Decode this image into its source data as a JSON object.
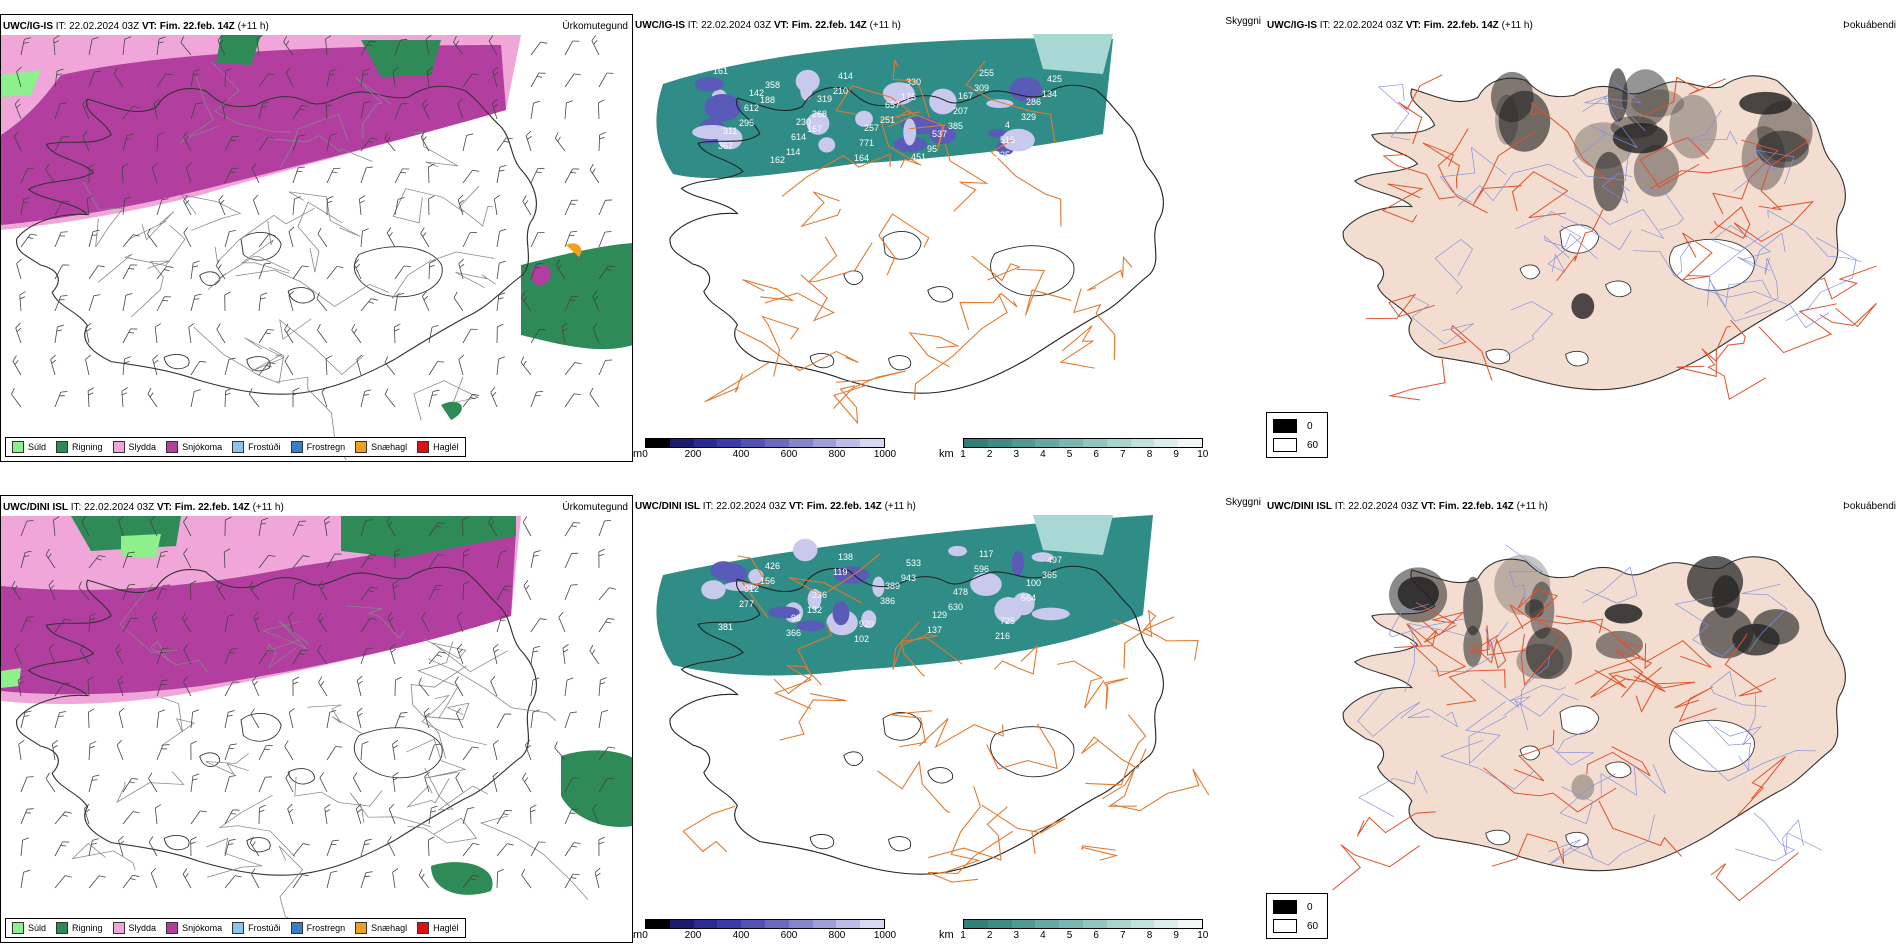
{
  "rows": [
    {
      "model": "UWC/IG-IS",
      "it_label": "IT:",
      "it_value": "22.02.2024 03Z",
      "vt_label": "VT:",
      "vt_value": "Fim. 22.feb. 14Z",
      "lead": "(+11 h)",
      "ptype_label": "Úrkomutegund",
      "cloud_label": "Skyggni",
      "fog_label": "Þokuábendi",
      "peaks": [
        "161",
        "188",
        "167",
        "164",
        "175",
        "385",
        "225",
        "134",
        "295",
        "114",
        "210",
        "251",
        "95",
        "309",
        "329",
        "367",
        "358",
        "268",
        "771",
        "330",
        "207",
        "515",
        "425",
        "612",
        "614",
        "414",
        "657",
        "537",
        "255",
        "286",
        "311",
        "162",
        "319",
        "257",
        "451",
        "167",
        "4",
        "7",
        "142",
        "230"
      ]
    },
    {
      "model": "UWC/DINI ISL",
      "it_label": "IT:",
      "it_value": "22.02.2024 03Z",
      "vt_label": "VT:",
      "vt_value": "Fim. 22.feb. 14Z",
      "lead": "(+11 h)",
      "ptype_label": "Úrkomutegund",
      "cloud_label": "Skyggni",
      "fog_label": "Þokuábendi",
      "peaks": [
        "185",
        "156",
        "132",
        "102",
        "943",
        "630",
        "216",
        "365",
        "277",
        "366",
        "119",
        "386",
        "137",
        "596",
        "564",
        "381",
        "426",
        "236",
        "920",
        "533",
        "478",
        "725",
        "497",
        "912",
        "98",
        "138",
        "389",
        "129",
        "117",
        "100"
      ]
    }
  ],
  "ptype_legend": [
    {
      "label": "Súld",
      "color": "#8ef08a"
    },
    {
      "label": "Rigning",
      "color": "#2e8b57"
    },
    {
      "label": "Slydda",
      "color": "#f0a6d9"
    },
    {
      "label": "Snjókoma",
      "color": "#b23fa0"
    },
    {
      "label": "Frostúði",
      "color": "#8fc2f0"
    },
    {
      "label": "Frostregn",
      "color": "#3a7ec8"
    },
    {
      "label": "Snæhagl",
      "color": "#f0a020"
    },
    {
      "label": "Haglél",
      "color": "#e01010"
    }
  ],
  "height_bar": {
    "unit": "m",
    "ticks": [
      "0",
      "200",
      "400",
      "600",
      "800",
      "1000"
    ]
  },
  "vis_bar": {
    "unit": "km",
    "ticks": [
      "1",
      "2",
      "3",
      "4",
      "5",
      "6",
      "7",
      "8",
      "9",
      "10"
    ]
  },
  "fog_legend": {
    "black": "0",
    "white": "60"
  },
  "colors": {
    "snow": "#b23fa0",
    "sleet": "#f0a6d9",
    "rain": "#2e8b57",
    "drizzle": "#8ef08a",
    "teal": "#2f8c86",
    "land": "#f2ddd0",
    "road": "#e07a30",
    "road_red": "#e0502a"
  }
}
